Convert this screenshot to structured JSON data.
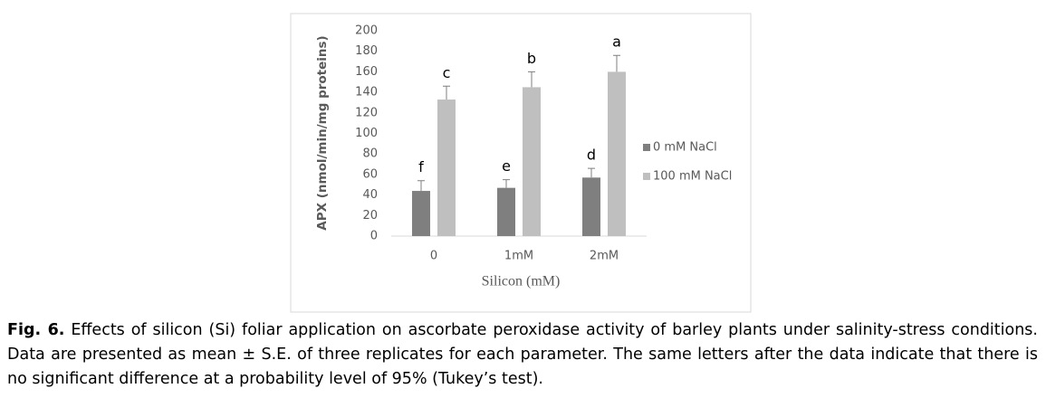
{
  "chart_data": {
    "type": "bar",
    "ylabel": "APX (nmol/min/mg proteins)",
    "xlabel": "Silicon (mM)",
    "categories": [
      "0",
      "1mM",
      "2mM"
    ],
    "series": [
      {
        "name": "0 mM NaCl",
        "color": "#7f7f7f",
        "values": [
          44,
          47,
          57
        ],
        "errors": [
          10,
          8,
          9
        ],
        "letters": [
          "f",
          "e",
          "d"
        ]
      },
      {
        "name": "100 mM NaCl",
        "color": "#bfbfbf",
        "values": [
          133,
          145,
          160
        ],
        "errors": [
          13,
          15,
          16
        ],
        "letters": [
          "c",
          "b",
          "a"
        ]
      }
    ],
    "ylim": [
      0,
      200
    ],
    "yticks": [
      0,
      20,
      40,
      60,
      80,
      100,
      120,
      140,
      160,
      180,
      200
    ],
    "grid": false
  },
  "caption": {
    "label": "Fig. 6.",
    "text": "Effects of silicon (Si) foliar application on ascorbate peroxidase activity of barley plants under salinity-stress conditions. Data are presented as mean ± S.E. of three replicates for each parameter. The same letters after the data indicate that there is no significant difference at a probability level of 95% (Tukey’s test)."
  }
}
